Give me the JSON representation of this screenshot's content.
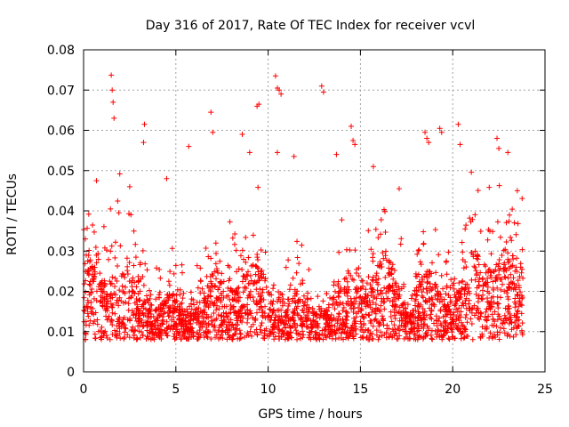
{
  "chart_data": {
    "type": "scatter",
    "title": "Day 316 of 2017, Rate Of TEC Index for receiver vcvl",
    "xlabel": "GPS time / hours",
    "ylabel": "ROTI / TECUs",
    "xlim": [
      0,
      25
    ],
    "ylim": [
      0,
      0.08
    ],
    "xticks": [
      "0",
      "5",
      "10",
      "15",
      "20",
      "25"
    ],
    "yticks": [
      "0",
      "0.01",
      "0.02",
      "0.03",
      "0.04",
      "0.05",
      "0.06",
      "0.07",
      "0.08"
    ],
    "grid": true,
    "marker": "+",
    "color": "#ff0000",
    "x_data_range": [
      0,
      23.8
    ],
    "y_baseline_range": [
      0.004,
      0.03
    ],
    "series": [
      {
        "name": "",
        "x": [
          1.5,
          1.55,
          1.6,
          1.65,
          3.3,
          3.25,
          5.7,
          6.9,
          7.0,
          8.6,
          9.4,
          9.5,
          10.4,
          10.5,
          10.6,
          10.7,
          12.9,
          13.0,
          14.5,
          14.6,
          14.7,
          18.5,
          18.6,
          18.7,
          19.3,
          19.4,
          20.3,
          20.4,
          22.4,
          22.5,
          10.5,
          9.0,
          11.4,
          15.7,
          17.1,
          13.7,
          4.5,
          2.5,
          0.7,
          23.5
        ],
        "y": [
          0.0737,
          0.07,
          0.067,
          0.063,
          0.0615,
          0.057,
          0.056,
          0.0645,
          0.0595,
          0.059,
          0.066,
          0.0665,
          0.0735,
          0.0705,
          0.07,
          0.069,
          0.071,
          0.0695,
          0.061,
          0.0575,
          0.0565,
          0.0595,
          0.058,
          0.057,
          0.0605,
          0.0595,
          0.0615,
          0.0565,
          0.058,
          0.0555,
          0.0545,
          0.0545,
          0.0535,
          0.051,
          0.0455,
          0.054,
          0.048,
          0.046,
          0.0475,
          0.045
        ]
      }
    ]
  }
}
